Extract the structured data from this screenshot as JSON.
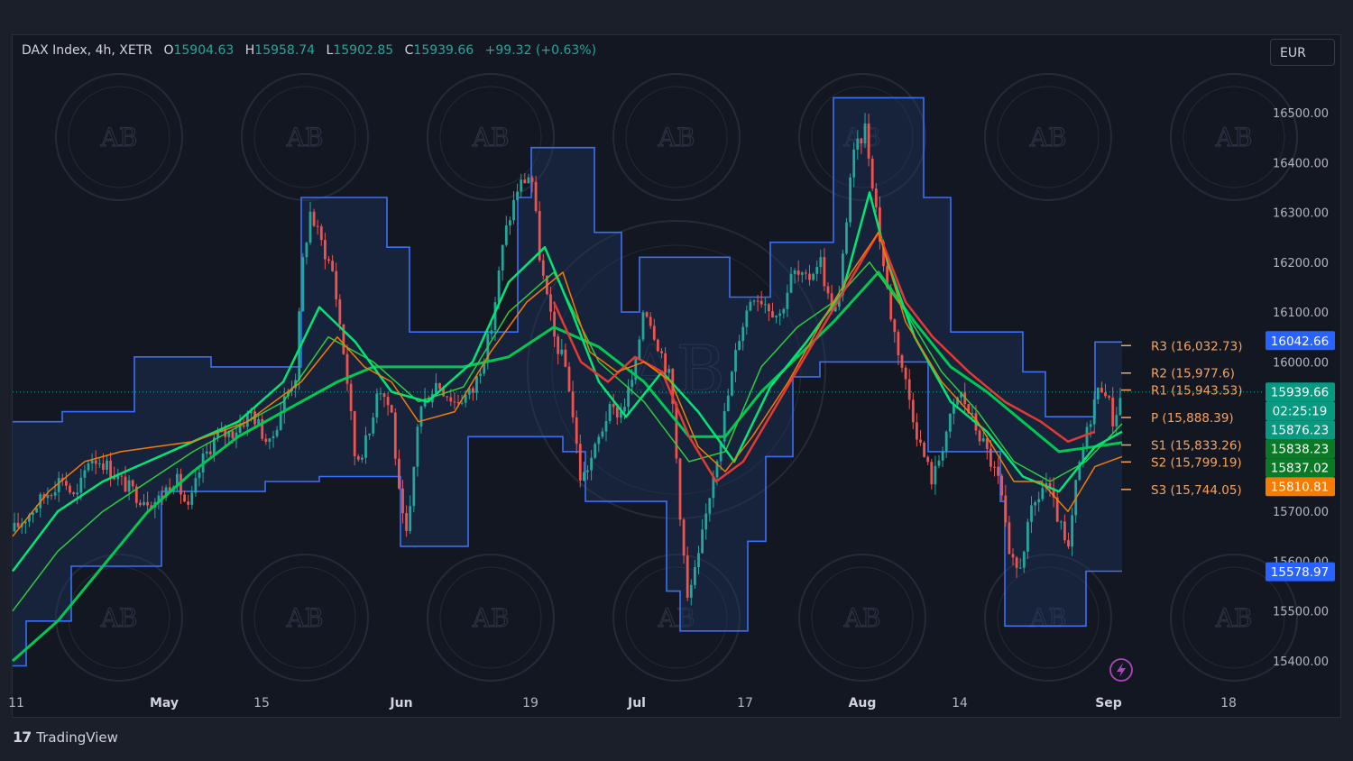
{
  "header": {
    "symbol": "DAX Index, 4h, XETR",
    "open_label": "O",
    "open": "15904.63",
    "high_label": "H",
    "high": "15958.74",
    "low_label": "L",
    "low": "15902.85",
    "close_label": "C",
    "close": "15939.66",
    "change": "+99.32 (+0.63%)"
  },
  "currency_button": "EUR",
  "footer": {
    "brand": "TradingView",
    "brand_icon": "tradingview-logo-icon"
  },
  "watermark_text": "AB",
  "chart_data": {
    "type": "candlestick",
    "y_axis": {
      "range": [
        15340,
        16590
      ],
      "ticks": [
        "16500.00",
        "16400.00",
        "16300.00",
        "16200.00",
        "16100.00",
        "16000.00",
        "15700.00",
        "15600.00",
        "15500.00",
        "15400.00"
      ]
    },
    "x_axis": {
      "labels": [
        {
          "text": "11",
          "bold": false
        },
        {
          "text": "May",
          "bold": true
        },
        {
          "text": "15",
          "bold": false
        },
        {
          "text": "Jun",
          "bold": true
        },
        {
          "text": "19",
          "bold": false
        },
        {
          "text": "Jul",
          "bold": true
        },
        {
          "text": "17",
          "bold": false
        },
        {
          "text": "Aug",
          "bold": true
        },
        {
          "text": "14",
          "bold": false
        },
        {
          "text": "Sep",
          "bold": true
        },
        {
          "text": "18",
          "bold": false
        }
      ]
    },
    "pivots": [
      {
        "label": "R3 (16,032.73)",
        "value": 16032.73
      },
      {
        "label": "R2 (15,977.6)",
        "value": 15977.6
      },
      {
        "label": "R1 (15,943.53)",
        "value": 15943.53
      },
      {
        "label": "P (15,888.39)",
        "value": 15888.39
      },
      {
        "label": "S1 (15,833.26)",
        "value": 15833.26
      },
      {
        "label": "S2 (15,799.19)",
        "value": 15799.19
      },
      {
        "label": "S3 (15,744.05)",
        "value": 15744.05
      }
    ],
    "price_tags": [
      {
        "text": "16042.66",
        "value": 16042.66,
        "color": "#2962ff"
      },
      {
        "text": "15939.66",
        "value": 15939.66,
        "color": "#089981"
      },
      {
        "text": "02:25:19",
        "value": 15917.0,
        "color": "#089981"
      },
      {
        "text": "15876.23",
        "value": 15876.23,
        "color": "#089981"
      },
      {
        "text": "15838.23",
        "value": 15838.23,
        "color": "#0b7a26"
      },
      {
        "text": "15837.02",
        "value": 15837.02,
        "color": "#0b7a26"
      },
      {
        "text": "15810.81",
        "value": 15810.81,
        "color": "#f57c00"
      },
      {
        "text": "15578.97",
        "value": 15578.97,
        "color": "#2962ff"
      }
    ],
    "last_price": 15939.66,
    "channel_upper": [
      [
        0,
        15880
      ],
      [
        55,
        15880
      ],
      [
        55,
        15900
      ],
      [
        135,
        15900
      ],
      [
        135,
        16010
      ],
      [
        220,
        16010
      ],
      [
        220,
        15990
      ],
      [
        320,
        15990
      ],
      [
        320,
        16330
      ],
      [
        415,
        16330
      ],
      [
        415,
        16230
      ],
      [
        440,
        16230
      ],
      [
        440,
        16060
      ],
      [
        560,
        16060
      ],
      [
        560,
        16330
      ],
      [
        575,
        16330
      ],
      [
        575,
        16430
      ],
      [
        645,
        16430
      ],
      [
        645,
        16260
      ],
      [
        675,
        16260
      ],
      [
        675,
        16100
      ],
      [
        695,
        16100
      ],
      [
        695,
        16210
      ],
      [
        795,
        16210
      ],
      [
        795,
        16130
      ],
      [
        840,
        16130
      ],
      [
        840,
        16240
      ],
      [
        910,
        16240
      ],
      [
        910,
        16530
      ],
      [
        1010,
        16530
      ],
      [
        1010,
        16330
      ],
      [
        1040,
        16330
      ],
      [
        1040,
        16060
      ],
      [
        1120,
        16060
      ],
      [
        1120,
        15980
      ],
      [
        1145,
        15980
      ],
      [
        1145,
        15890
      ],
      [
        1200,
        15890
      ],
      [
        1200,
        16040
      ],
      [
        1230,
        16040
      ]
    ],
    "channel_lower": [
      [
        0,
        15390
      ],
      [
        15,
        15390
      ],
      [
        15,
        15480
      ],
      [
        65,
        15480
      ],
      [
        65,
        15590
      ],
      [
        165,
        15590
      ],
      [
        165,
        15740
      ],
      [
        280,
        15740
      ],
      [
        280,
        15760
      ],
      [
        340,
        15760
      ],
      [
        340,
        15770
      ],
      [
        430,
        15770
      ],
      [
        430,
        15630
      ],
      [
        505,
        15630
      ],
      [
        505,
        15850
      ],
      [
        610,
        15850
      ],
      [
        610,
        15820
      ],
      [
        635,
        15820
      ],
      [
        635,
        15720
      ],
      [
        725,
        15720
      ],
      [
        725,
        15540
      ],
      [
        740,
        15540
      ],
      [
        740,
        15460
      ],
      [
        815,
        15460
      ],
      [
        815,
        15640
      ],
      [
        835,
        15640
      ],
      [
        835,
        15810
      ],
      [
        865,
        15810
      ],
      [
        865,
        15970
      ],
      [
        895,
        15970
      ],
      [
        895,
        16000
      ],
      [
        1015,
        16000
      ],
      [
        1015,
        15820
      ],
      [
        1095,
        15820
      ],
      [
        1095,
        15720
      ],
      [
        1100,
        15720
      ],
      [
        1100,
        15470
      ],
      [
        1190,
        15470
      ],
      [
        1190,
        15580
      ],
      [
        1230,
        15580
      ]
    ],
    "close_path": [
      [
        0,
        15660
      ],
      [
        20,
        15700
      ],
      [
        40,
        15740
      ],
      [
        55,
        15770
      ],
      [
        70,
        15720
      ],
      [
        85,
        15810
      ],
      [
        100,
        15800
      ],
      [
        120,
        15760
      ],
      [
        140,
        15730
      ],
      [
        160,
        15720
      ],
      [
        180,
        15770
      ],
      [
        195,
        15700
      ],
      [
        210,
        15800
      ],
      [
        225,
        15850
      ],
      [
        245,
        15860
      ],
      [
        265,
        15900
      ],
      [
        285,
        15830
      ],
      [
        300,
        15920
      ],
      [
        315,
        15980
      ],
      [
        320,
        16180
      ],
      [
        330,
        16300
      ],
      [
        340,
        16250
      ],
      [
        355,
        16180
      ],
      [
        370,
        15980
      ],
      [
        380,
        15800
      ],
      [
        395,
        15850
      ],
      [
        405,
        15960
      ],
      [
        420,
        15900
      ],
      [
        430,
        15700
      ],
      [
        438,
        15640
      ],
      [
        450,
        15900
      ],
      [
        470,
        15960
      ],
      [
        490,
        15920
      ],
      [
        510,
        15940
      ],
      [
        530,
        16060
      ],
      [
        545,
        16250
      ],
      [
        560,
        16350
      ],
      [
        575,
        16380
      ],
      [
        585,
        16200
      ],
      [
        600,
        16050
      ],
      [
        615,
        15980
      ],
      [
        630,
        15760
      ],
      [
        645,
        15820
      ],
      [
        660,
        15900
      ],
      [
        675,
        15900
      ],
      [
        690,
        15980
      ],
      [
        700,
        16120
      ],
      [
        715,
        16040
      ],
      [
        730,
        15960
      ],
      [
        740,
        15700
      ],
      [
        748,
        15520
      ],
      [
        760,
        15600
      ],
      [
        775,
        15760
      ],
      [
        790,
        15900
      ],
      [
        805,
        16050
      ],
      [
        820,
        16140
      ],
      [
        835,
        16120
      ],
      [
        850,
        16090
      ],
      [
        865,
        16180
      ],
      [
        880,
        16160
      ],
      [
        895,
        16210
      ],
      [
        905,
        16120
      ],
      [
        915,
        16100
      ],
      [
        930,
        16400
      ],
      [
        945,
        16470
      ],
      [
        955,
        16340
      ],
      [
        965,
        16200
      ],
      [
        975,
        16080
      ],
      [
        990,
        15960
      ],
      [
        1005,
        15840
      ],
      [
        1020,
        15760
      ],
      [
        1035,
        15860
      ],
      [
        1050,
        15940
      ],
      [
        1065,
        15880
      ],
      [
        1080,
        15820
      ],
      [
        1095,
        15750
      ],
      [
        1105,
        15600
      ],
      [
        1115,
        15580
      ],
      [
        1130,
        15700
      ],
      [
        1145,
        15760
      ],
      [
        1160,
        15680
      ],
      [
        1170,
        15610
      ],
      [
        1180,
        15770
      ],
      [
        1190,
        15850
      ],
      [
        1200,
        15930
      ],
      [
        1210,
        15960
      ],
      [
        1220,
        15880
      ],
      [
        1230,
        15940
      ]
    ],
    "moving_averages": [
      {
        "name": "",
        "color": "#00c853",
        "width": 3,
        "values": [
          [
            0,
            15400
          ],
          [
            50,
            15480
          ],
          [
            100,
            15590
          ],
          [
            150,
            15700
          ],
          [
            200,
            15780
          ],
          [
            250,
            15850
          ],
          [
            300,
            15900
          ],
          [
            360,
            15960
          ],
          [
            400,
            15990
          ],
          [
            450,
            15990
          ],
          [
            500,
            15990
          ],
          [
            550,
            16010
          ],
          [
            600,
            16070
          ],
          [
            650,
            16030
          ],
          [
            700,
            15960
          ],
          [
            750,
            15850
          ],
          [
            790,
            15850
          ],
          [
            830,
            15940
          ],
          [
            870,
            16010
          ],
          [
            910,
            16080
          ],
          [
            960,
            16180
          ],
          [
            1000,
            16080
          ],
          [
            1040,
            15990
          ],
          [
            1080,
            15940
          ],
          [
            1120,
            15880
          ],
          [
            1160,
            15820
          ],
          [
            1200,
            15830
          ],
          [
            1230,
            15838
          ]
        ]
      },
      {
        "name": "",
        "color": "#2ecc40",
        "width": 1.5,
        "values": [
          [
            0,
            15500
          ],
          [
            50,
            15620
          ],
          [
            100,
            15700
          ],
          [
            150,
            15760
          ],
          [
            200,
            15820
          ],
          [
            250,
            15870
          ],
          [
            300,
            15920
          ],
          [
            350,
            16050
          ],
          [
            400,
            16000
          ],
          [
            450,
            15920
          ],
          [
            500,
            15950
          ],
          [
            550,
            16100
          ],
          [
            600,
            16180
          ],
          [
            650,
            16000
          ],
          [
            700,
            15920
          ],
          [
            750,
            15800
          ],
          [
            790,
            15820
          ],
          [
            830,
            15990
          ],
          [
            870,
            16070
          ],
          [
            910,
            16120
          ],
          [
            950,
            16200
          ],
          [
            990,
            16100
          ],
          [
            1030,
            15980
          ],
          [
            1070,
            15900
          ],
          [
            1110,
            15800
          ],
          [
            1150,
            15760
          ],
          [
            1190,
            15800
          ],
          [
            1230,
            15876
          ]
        ]
      },
      {
        "name": "",
        "color": "#00e676",
        "width": 2.5,
        "values": [
          [
            0,
            15580
          ],
          [
            50,
            15700
          ],
          [
            100,
            15760
          ],
          [
            150,
            15800
          ],
          [
            200,
            15840
          ],
          [
            250,
            15880
          ],
          [
            300,
            15960
          ],
          [
            340,
            16110
          ],
          [
            380,
            16040
          ],
          [
            420,
            15940
          ],
          [
            460,
            15920
          ],
          [
            510,
            16000
          ],
          [
            550,
            16160
          ],
          [
            590,
            16230
          ],
          [
            620,
            16100
          ],
          [
            650,
            15960
          ],
          [
            680,
            15890
          ],
          [
            720,
            15980
          ],
          [
            760,
            15900
          ],
          [
            800,
            15800
          ],
          [
            840,
            15950
          ],
          [
            880,
            16040
          ],
          [
            920,
            16140
          ],
          [
            950,
            16340
          ],
          [
            970,
            16200
          ],
          [
            1000,
            16050
          ],
          [
            1040,
            15920
          ],
          [
            1080,
            15860
          ],
          [
            1120,
            15770
          ],
          [
            1160,
            15740
          ],
          [
            1200,
            15830
          ],
          [
            1230,
            15860
          ]
        ]
      },
      {
        "name": "",
        "color": "#e53935",
        "width": 2.5,
        "values": [
          [
            600,
            16120
          ],
          [
            630,
            16000
          ],
          [
            660,
            15960
          ],
          [
            690,
            16010
          ],
          [
            720,
            15980
          ],
          [
            750,
            15850
          ],
          [
            780,
            15760
          ],
          [
            810,
            15800
          ],
          [
            960,
            16260
          ],
          [
            990,
            16120
          ],
          [
            1020,
            16050
          ],
          [
            1060,
            15980
          ],
          [
            1100,
            15920
          ],
          [
            1140,
            15880
          ],
          [
            1170,
            15840
          ],
          [
            1200,
            15860
          ]
        ]
      },
      {
        "name": "",
        "color": "#f57c00",
        "width": 1.5,
        "values": [
          [
            0,
            15650
          ],
          [
            40,
            15740
          ],
          [
            80,
            15800
          ],
          [
            120,
            15820
          ],
          [
            160,
            15830
          ],
          [
            200,
            15840
          ],
          [
            260,
            15880
          ],
          [
            320,
            15960
          ],
          [
            360,
            16050
          ],
          [
            390,
            15990
          ],
          [
            420,
            15960
          ],
          [
            450,
            15880
          ],
          [
            490,
            15900
          ],
          [
            530,
            16020
          ],
          [
            570,
            16120
          ],
          [
            610,
            16180
          ],
          [
            640,
            16020
          ],
          [
            670,
            15980
          ],
          [
            700,
            16000
          ],
          [
            730,
            15960
          ],
          [
            760,
            15830
          ],
          [
            790,
            15780
          ],
          [
            820,
            15850
          ],
          [
            860,
            15960
          ],
          [
            900,
            16090
          ],
          [
            930,
            16180
          ],
          [
            960,
            16260
          ],
          [
            990,
            16080
          ],
          [
            1030,
            15960
          ],
          [
            1070,
            15880
          ],
          [
            1110,
            15760
          ],
          [
            1140,
            15760
          ],
          [
            1170,
            15700
          ],
          [
            1200,
            15790
          ],
          [
            1230,
            15810
          ]
        ]
      }
    ]
  }
}
